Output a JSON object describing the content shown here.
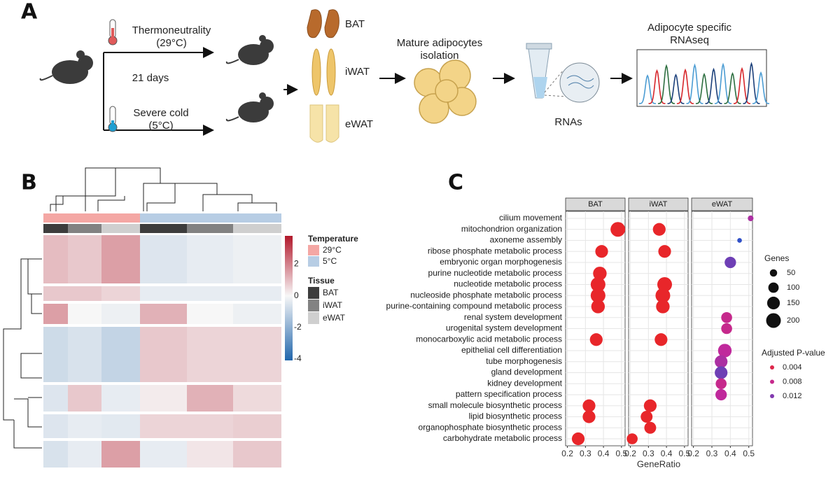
{
  "panel_a": {
    "label": "A",
    "conditions": [
      {
        "name": "Thermoneutrality",
        "temp": "(29°C)"
      },
      {
        "name": "Severe cold",
        "temp": "(5°C)"
      }
    ],
    "duration": "21 days",
    "tissues": [
      "BAT",
      "iWAT",
      "eWAT"
    ],
    "isolation": [
      "Mature adipocytes",
      "isolation"
    ],
    "rna": "RNAs",
    "sequencing": [
      "Adipocyte specific",
      "RNAseq"
    ]
  },
  "panel_b": {
    "label": "B",
    "temperature": {
      "title": "Temperature",
      "levels": [
        "29°C",
        "5°C"
      ],
      "colors": [
        "#f4a7a4",
        "#b7cde4"
      ]
    },
    "tissue": {
      "title": "Tissue",
      "levels": [
        "BAT",
        "iWAT",
        "eWAT"
      ],
      "colors": [
        "#3d3d3d",
        "#828282",
        "#cfcfcf"
      ]
    },
    "values": [
      [
        [
          1.0,
          0.8,
          1.5
        ],
        [
          -0.5,
          -0.3,
          -0.2
        ]
      ],
      [
        [
          0.8,
          0.8,
          0.6
        ],
        [
          -0.3,
          -0.3,
          -0.3
        ]
      ],
      [
        [
          1.5,
          0.0,
          -0.2
        ],
        [
          1.2,
          0.0,
          -0.2
        ]
      ],
      [
        [
          -0.8,
          -0.6,
          -1.0
        ],
        [
          0.8,
          0.6,
          0.6
        ]
      ],
      [
        [
          -0.5,
          0.8,
          -0.3
        ],
        [
          0.2,
          1.2,
          0.5
        ]
      ],
      [
        [
          -0.5,
          -0.3,
          -0.4
        ],
        [
          0.6,
          0.6,
          0.7
        ]
      ],
      [
        [
          -0.6,
          -0.3,
          1.5
        ],
        [
          -0.3,
          0.3,
          0.8
        ]
      ]
    ],
    "color_scale": {
      "colors": [
        "#2166ac",
        "#f7f7f7",
        "#b2182b"
      ],
      "lim": [
        -4.1,
        3.8
      ],
      "ticks": [
        2,
        0,
        -2,
        -4
      ]
    }
  },
  "panel_c": {
    "label": "C",
    "type": "scatter",
    "categories": [
      "cilium movement",
      "mitochondrion organization",
      "axoneme assembly",
      "ribose phosphate metabolic process",
      "embryonic organ morphogenesis",
      "purine nucleotide metabolic process",
      "nucleotide metabolic process",
      "nucleoside phosphate metabolic process",
      "purine-containing compound metabolic process",
      "renal system development",
      "urogenital system development",
      "monocarboxylic acid metabolic process",
      "epithelial cell differentiation",
      "tube morphogenesis",
      "gland development",
      "kidney development",
      "pattern specification process",
      "small molecule biosynthetic process",
      "lipid biosynthetic process",
      "organophosphate biosynthetic process",
      "carbohydrate metabolic process"
    ],
    "series": [
      {
        "name": "BAT",
        "gene_ratio": [
          null,
          0.48,
          null,
          0.39,
          null,
          0.38,
          0.37,
          0.37,
          0.37,
          null,
          null,
          0.36,
          null,
          null,
          null,
          null,
          null,
          0.32,
          0.32,
          null,
          0.26
        ],
        "genes": [
          null,
          200,
          null,
          150,
          null,
          170,
          200,
          200,
          170,
          null,
          null,
          150,
          null,
          null,
          null,
          null,
          null,
          150,
          150,
          null,
          150
        ],
        "padj": [
          null,
          0.002,
          null,
          0.002,
          null,
          0.002,
          0.002,
          0.002,
          0.002,
          null,
          null,
          0.002,
          null,
          null,
          null,
          null,
          null,
          0.002,
          0.002,
          null,
          0.002
        ]
      },
      {
        "name": "iWAT",
        "gene_ratio": [
          null,
          0.36,
          null,
          0.39,
          null,
          null,
          0.39,
          0.38,
          0.38,
          null,
          null,
          0.37,
          null,
          null,
          null,
          null,
          null,
          0.31,
          0.29,
          0.31,
          0.21
        ],
        "genes": [
          null,
          150,
          null,
          150,
          null,
          null,
          200,
          200,
          170,
          null,
          null,
          150,
          null,
          null,
          null,
          null,
          null,
          150,
          130,
          130,
          110
        ],
        "padj": [
          null,
          0.002,
          null,
          0.002,
          null,
          null,
          0.002,
          0.002,
          0.002,
          null,
          null,
          0.002,
          null,
          null,
          null,
          null,
          null,
          0.002,
          0.002,
          0.002,
          0.002
        ]
      },
      {
        "name": "eWAT",
        "gene_ratio": [
          0.51,
          null,
          0.45,
          null,
          0.4,
          null,
          null,
          null,
          null,
          0.38,
          0.38,
          null,
          0.37,
          0.35,
          0.35,
          0.35,
          0.35,
          null,
          null,
          null,
          null
        ],
        "genes": [
          30,
          null,
          20,
          null,
          120,
          null,
          null,
          null,
          null,
          110,
          110,
          null,
          170,
          150,
          150,
          110,
          120,
          null,
          null,
          null,
          null
        ],
        "padj": [
          0.01,
          null,
          0.016,
          null,
          0.013,
          null,
          null,
          null,
          null,
          0.008,
          0.008,
          null,
          0.009,
          0.01,
          0.013,
          0.008,
          0.009,
          null,
          null,
          null,
          null
        ]
      }
    ],
    "xlabel": "GeneRatio",
    "xlim": [
      0.19,
      0.52
    ],
    "xticks": [
      0.2,
      0.3,
      0.4,
      0.5
    ],
    "grid": true,
    "size_legend": {
      "title": "Genes",
      "values": [
        50,
        100,
        150,
        200
      ]
    },
    "color_legend": {
      "title": "Adjusted P-value",
      "values": [
        0.004,
        0.008,
        0.012
      ]
    },
    "padj_lim": [
      0.002,
      0.016
    ],
    "colors": [
      "#e8262a",
      "#c0299c",
      "#3050c8"
    ]
  }
}
